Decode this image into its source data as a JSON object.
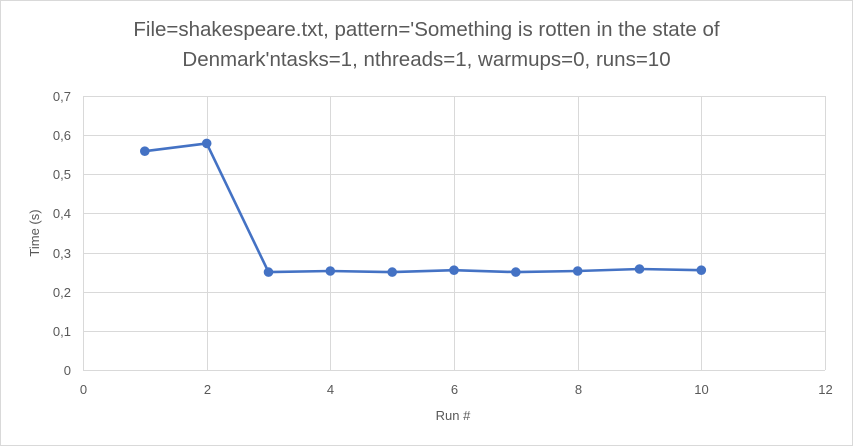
{
  "chart_data": {
    "type": "line",
    "title": "File=shakespeare.txt, pattern='Something is rotten in the state of Denmark'ntasks=1, nthreads=1, warmups=0, runs=10",
    "title_lines": [
      "File=shakespeare.txt, pattern='Something is rotten in the state of",
      "Denmark'ntasks=1, nthreads=1, warmups=0, runs=10"
    ],
    "xlabel": "Run #",
    "ylabel": "Time (s)",
    "xlim": [
      0,
      12
    ],
    "ylim": [
      0,
      0.7
    ],
    "x_ticks": [
      0,
      2,
      4,
      6,
      8,
      10,
      12
    ],
    "x_tick_labels": [
      "0",
      "2",
      "4",
      "6",
      "8",
      "10",
      "12"
    ],
    "y_ticks": [
      0,
      0.1,
      0.2,
      0.3,
      0.4,
      0.5,
      0.6,
      0.7
    ],
    "y_tick_labels": [
      "0",
      "0,1",
      "0,2",
      "0,3",
      "0,4",
      "0,5",
      "0,6",
      "0,7"
    ],
    "grid": true,
    "legend": "none",
    "series": [
      {
        "color": "#4472c4",
        "x": [
          1,
          2,
          3,
          4,
          5,
          6,
          7,
          8,
          9,
          10
        ],
        "y": [
          0.559,
          0.579,
          0.25,
          0.253,
          0.25,
          0.255,
          0.25,
          0.253,
          0.258,
          0.255
        ]
      }
    ],
    "colors": {
      "grid": "#d9d9d9",
      "text": "#595959"
    }
  }
}
